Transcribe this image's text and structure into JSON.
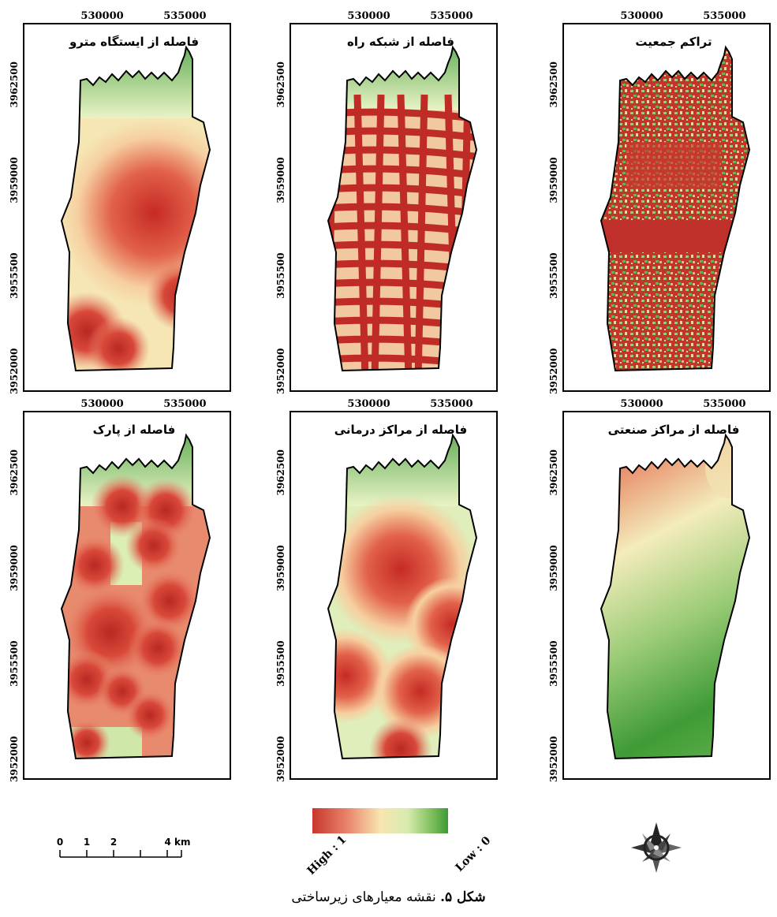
{
  "figure": {
    "caption_label": "شکل ۵.",
    "caption_text": " نقشه معیارهای زیرساختی"
  },
  "axis_labels": {
    "x_ticks": [
      "530000",
      "535000"
    ],
    "y_ticks": [
      "3962500",
      "3959000",
      "3955500",
      "3952000"
    ]
  },
  "panels": [
    {
      "id": "metro",
      "title": "فاصله از ایستگاه مترو",
      "pattern": "radial-hotspots"
    },
    {
      "id": "roads",
      "title": "فاصله از شبکه راه",
      "pattern": "road-grid"
    },
    {
      "id": "population",
      "title": "تراکم جمعیت",
      "pattern": "speckled-density"
    },
    {
      "id": "park",
      "title": "فاصله از پارک",
      "pattern": "radial-hotspots"
    },
    {
      "id": "medical",
      "title": "فاصله از مراکز درمانی",
      "pattern": "radial-hotspots"
    },
    {
      "id": "industrial",
      "title": "فاصله از مراکز صنعتی",
      "pattern": "gradient-north-south"
    }
  ],
  "legend": {
    "high_label": "High : 1",
    "low_label": "Low : 0",
    "colors": [
      "#c8372d",
      "#e8826a",
      "#f8e5b0",
      "#d8ecb0",
      "#7fbf5c",
      "#3c9a35"
    ]
  },
  "scale_bar": {
    "ticks": [
      "0",
      "1",
      "2",
      "4 km"
    ]
  },
  "north_arrow": {
    "icon": "compass-rose-icon"
  }
}
